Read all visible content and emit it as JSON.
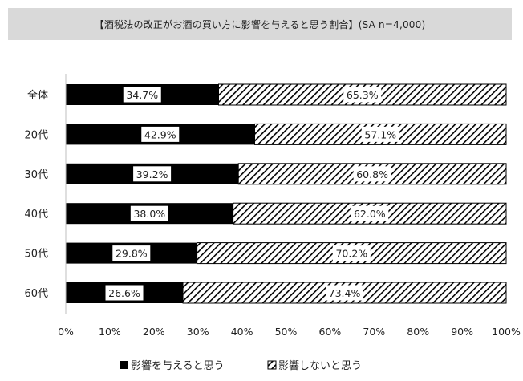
{
  "title": "【酒税法の改正がお酒の買い方に影響を与えると思う割合】(SA n=4,000)",
  "colors": {
    "affects": "#000000",
    "no_effect_stroke": "#000000",
    "background": "#ffffff",
    "title_bg": "#d9d9d9"
  },
  "chart_data": {
    "type": "bar",
    "orientation": "horizontal",
    "stacked": true,
    "title": "【酒税法の改正がお酒の買い方に影響を与えると思う割合】(SA n=4,000)",
    "categories": [
      "全体",
      "20代",
      "30代",
      "40代",
      "50代",
      "60代"
    ],
    "series": [
      {
        "name": "影響を与えると思う",
        "values": [
          34.7,
          42.9,
          39.2,
          38.0,
          29.8,
          26.6
        ],
        "labels": [
          "34.7%",
          "42.9%",
          "39.2%",
          "38.0%",
          "29.8%",
          "26.6%"
        ],
        "fill": "solid"
      },
      {
        "name": "影響しないと思う",
        "values": [
          65.3,
          57.1,
          60.8,
          62.0,
          70.2,
          73.4
        ],
        "labels": [
          "65.3%",
          "57.1%",
          "60.8%",
          "62.0%",
          "70.2%",
          "73.4%"
        ],
        "fill": "hatch"
      }
    ],
    "xlim": [
      0,
      100
    ],
    "xticks": [
      "0%",
      "10%",
      "20%",
      "30%",
      "40%",
      "50%",
      "60%",
      "70%",
      "80%",
      "90%",
      "100%"
    ],
    "legend_position": "bottom",
    "grid": false
  }
}
